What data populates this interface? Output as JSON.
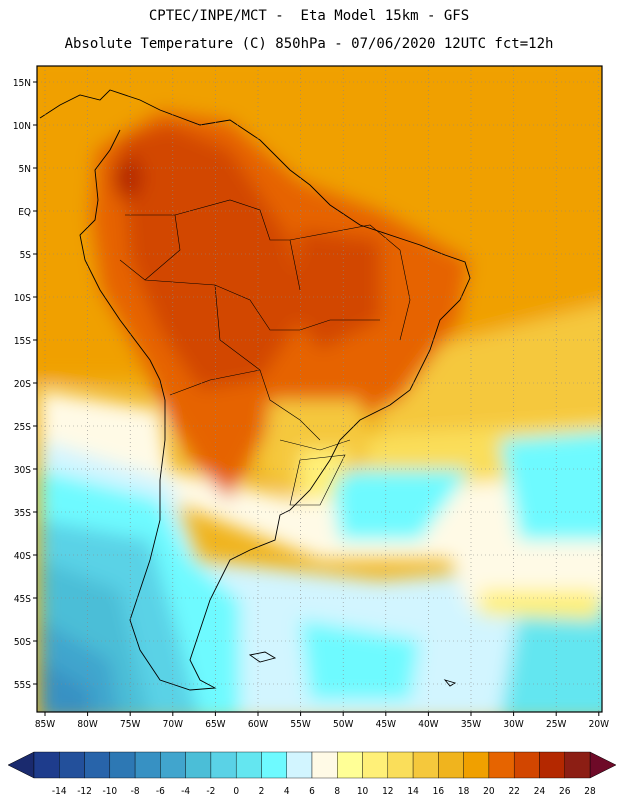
{
  "header": {
    "line1": "CPTEC/INPE/MCT -  Eta Model 15km - GFS",
    "line2": "Absolute Temperature (C) 850hPa - 07/06/2020 12UTC fct=12h"
  },
  "map": {
    "lat_labels": [
      "15N",
      "10N",
      "5N",
      "EQ",
      "5S",
      "10S",
      "15S",
      "20S",
      "25S",
      "30S",
      "35S",
      "40S",
      "45S",
      "50S",
      "55S"
    ],
    "lon_labels": [
      "85W",
      "80W",
      "75W",
      "70W",
      "65W",
      "60W",
      "55W",
      "50W",
      "45W",
      "40W",
      "35W",
      "30W",
      "25W",
      "20W"
    ]
  },
  "colorbar": {
    "labels": [
      "-14",
      "-12",
      "-10",
      "-8",
      "-6",
      "-4",
      "-2",
      "0",
      "2",
      "4",
      "6",
      "8",
      "10",
      "12",
      "14",
      "16",
      "18",
      "20",
      "22",
      "24",
      "26",
      "28"
    ],
    "colors": [
      "#1e3c8c",
      "#23509b",
      "#2864aa",
      "#2d78b4",
      "#3791c3",
      "#41a5cd",
      "#4bbed7",
      "#5ad2e6",
      "#64e6f0",
      "#6efaff",
      "#d2f5ff",
      "#fffae6",
      "#ffff96",
      "#fff078",
      "#fade5a",
      "#f5c83c",
      "#f0b41e",
      "#f0a000",
      "#e66400",
      "#d24600",
      "#b42800",
      "#8c1e14"
    ]
  }
}
